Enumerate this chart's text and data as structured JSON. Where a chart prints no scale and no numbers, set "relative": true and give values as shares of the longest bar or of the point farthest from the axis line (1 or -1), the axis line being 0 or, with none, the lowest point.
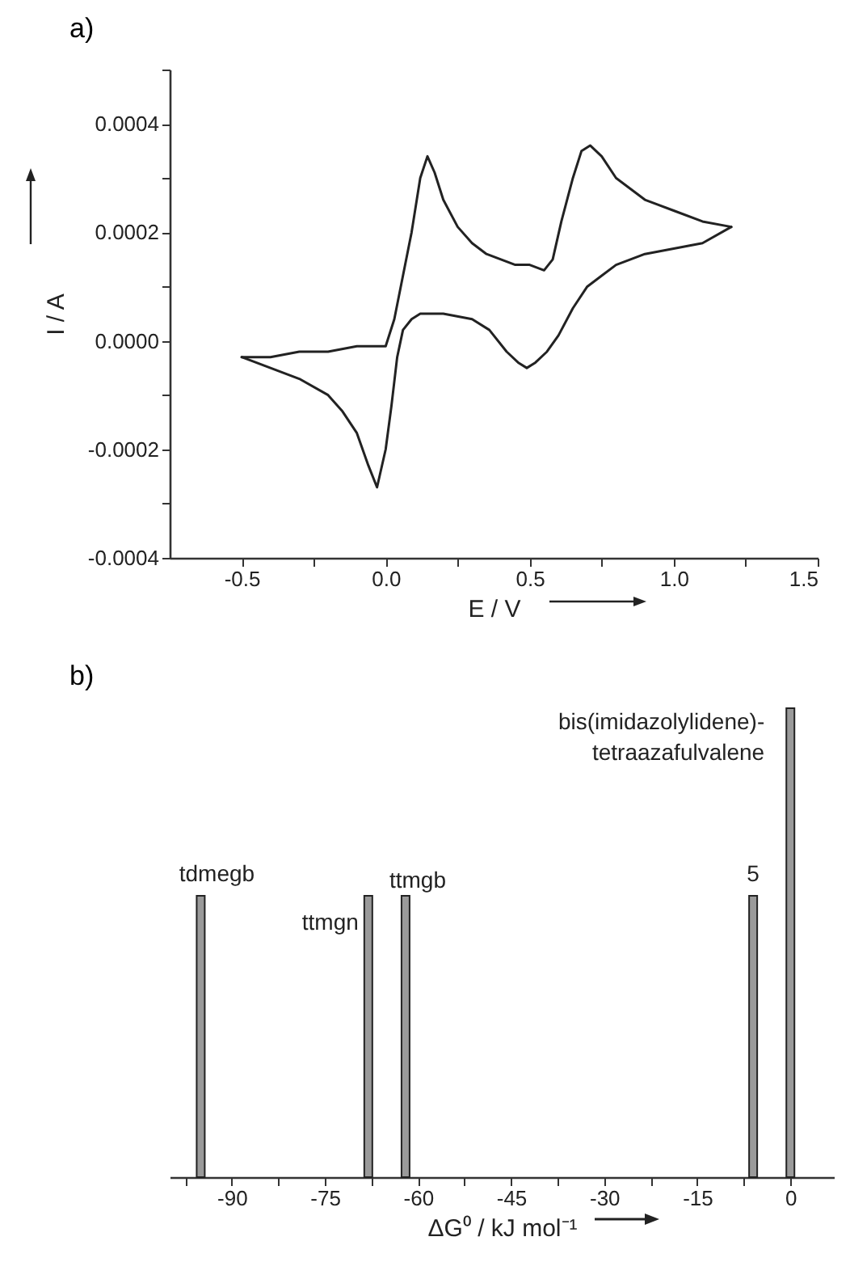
{
  "chart_data": [
    {
      "type": "line",
      "title": "a)",
      "xlabel": "E / V",
      "ylabel": "I / A",
      "series": [
        {
          "color": "#222222",
          "x": [
            -0.5,
            -0.4,
            -0.3,
            -0.2,
            -0.1,
            -0.03,
            0.0,
            0.03,
            0.06,
            0.09,
            0.12,
            0.145,
            0.17,
            0.2,
            0.25,
            0.3,
            0.35,
            0.4,
            0.45,
            0.5,
            0.55,
            0.58,
            0.61,
            0.65,
            0.68,
            0.71,
            0.75,
            0.8,
            0.9,
            1.0,
            1.1,
            1.2
          ],
          "values": [
            -3e-05,
            -3e-05,
            -2e-05,
            -2e-05,
            -1e-05,
            -1e-05,
            -1e-05,
            4e-05,
            0.00012,
            0.0002,
            0.0003,
            0.00034,
            0.00031,
            0.00026,
            0.00021,
            0.00018,
            0.00016,
            0.00015,
            0.00014,
            0.00014,
            0.00013,
            0.00015,
            0.00022,
            0.0003,
            0.00035,
            0.00036,
            0.00034,
            0.0003,
            0.00026,
            0.00024,
            0.00022,
            0.00021
          ]
        },
        {
          "color": "#222222",
          "x": [
            1.2,
            1.1,
            1.0,
            0.9,
            0.8,
            0.75,
            0.7,
            0.65,
            0.6,
            0.56,
            0.52,
            0.49,
            0.46,
            0.42,
            0.36,
            0.3,
            0.2,
            0.12,
            0.09,
            0.06,
            0.04,
            0.02,
            0.0,
            -0.03,
            -0.06,
            -0.1,
            -0.15,
            -0.2,
            -0.3,
            -0.4,
            -0.5
          ],
          "values": [
            0.00021,
            0.00018,
            0.00017,
            0.00016,
            0.00014,
            0.00012,
            0.0001,
            6e-05,
            1e-05,
            -2e-05,
            -4e-05,
            -5e-05,
            -4e-05,
            -2e-05,
            2e-05,
            4e-05,
            5e-05,
            5e-05,
            4e-05,
            2e-05,
            -3e-05,
            -0.00012,
            -0.0002,
            -0.00027,
            -0.00023,
            -0.00017,
            -0.00013,
            -0.0001,
            -7e-05,
            -5e-05,
            -3e-05
          ]
        }
      ],
      "xlim": [
        -0.75,
        1.5
      ],
      "xticks": [
        {
          "value": -0.5,
          "label": "-0.5"
        },
        {
          "value": -0.25,
          "label": null
        },
        {
          "value": 0,
          "label": "0.0"
        },
        {
          "value": 0.25,
          "label": null
        },
        {
          "value": 0.5,
          "label": "0.5"
        },
        {
          "value": 0.75,
          "label": null
        },
        {
          "value": 1,
          "label": "1.0"
        },
        {
          "value": 1.25,
          "label": null
        },
        {
          "value": 1.5,
          "label": "1.5"
        }
      ],
      "ylim": [
        -0.0004,
        0.0005
      ],
      "yticks": [
        {
          "value": -0.0004,
          "label": "-0.0004"
        },
        {
          "value": -0.0003,
          "label": null
        },
        {
          "value": -0.0002,
          "label": "-0.0002"
        },
        {
          "value": -0.0001,
          "label": null
        },
        {
          "value": 0,
          "label": "0.0000"
        },
        {
          "value": 0.0001,
          "label": null
        },
        {
          "value": 0.0002,
          "label": "0.0002"
        },
        {
          "value": 0.0003,
          "label": null
        },
        {
          "value": 0.0004,
          "label": "0.0004"
        },
        {
          "value": 0.0005,
          "label": null
        }
      ]
    },
    {
      "type": "bar",
      "title": "b)",
      "xlabel": "ΔG⁰ / kJ mol⁻¹",
      "relative": true,
      "x": [
        -95,
        -68,
        -62,
        -6,
        0
      ],
      "values": [
        0.6,
        0.6,
        0.6,
        0.6,
        1
      ],
      "color": "#9a9a9a",
      "xlim": [
        -100,
        7
      ],
      "xticks": [
        {
          "value": -97.5,
          "label": null
        },
        {
          "value": -90,
          "label": "-90"
        },
        {
          "value": -82.5,
          "label": null
        },
        {
          "value": -75,
          "label": "-75"
        },
        {
          "value": -67.5,
          "label": null
        },
        {
          "value": -60,
          "label": "-60"
        },
        {
          "value": -52.5,
          "label": null
        },
        {
          "value": -45,
          "label": "-45"
        },
        {
          "value": -37.5,
          "label": null
        },
        {
          "value": -30,
          "label": "-30"
        },
        {
          "value": -22.5,
          "label": null
        },
        {
          "value": -15,
          "label": "-15"
        },
        {
          "value": -7.5,
          "label": null
        },
        {
          "value": 0,
          "label": "0"
        }
      ],
      "annotations": [
        {
          "text": "tdmegb",
          "x": -95,
          "y": 0.6
        },
        {
          "text": "ttmgn",
          "x": -68,
          "y": 0.6
        },
        {
          "text": "ttmgb",
          "x": -62,
          "y": 0.6
        },
        {
          "text": "5",
          "x": -6,
          "y": 0.6
        },
        {
          "text": "bis(imidazolylidene)-\ntetraazafulvalene",
          "x": 0,
          "y": 1
        }
      ]
    }
  ]
}
